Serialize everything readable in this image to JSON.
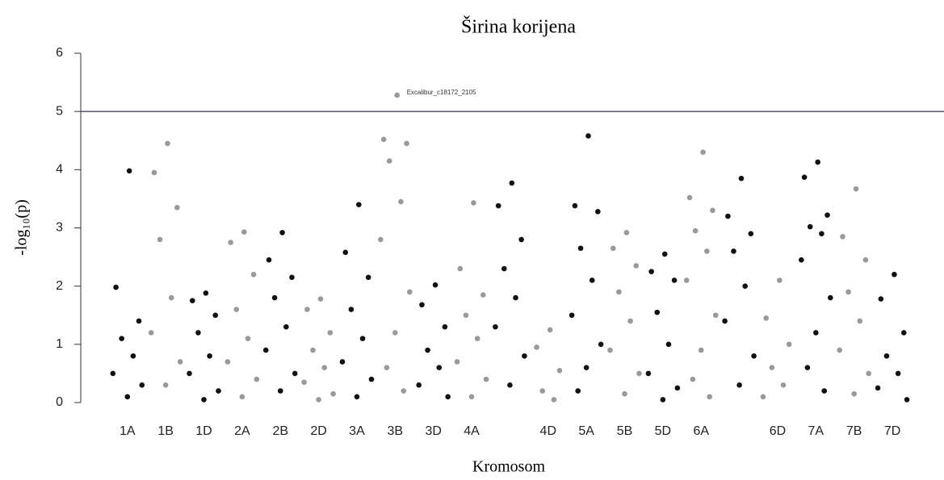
{
  "chart_data": {
    "type": "scatter",
    "title": "Širina korijena",
    "x_label": "Kromosom",
    "y_label": "-log₁₀(p)",
    "categories": [
      "1A",
      "1B",
      "1D",
      "2A",
      "2B",
      "2D",
      "3A",
      "3B",
      "3D",
      "4A",
      null,
      "4D",
      "5A",
      "5B",
      "5D",
      "6A",
      null,
      "6D",
      "7A",
      "7B",
      "7D"
    ],
    "xlim": [
      -1.22,
      21.35
    ],
    "ylim": [
      0,
      6
    ],
    "yticks": [
      0,
      1,
      2,
      3,
      4,
      5,
      6
    ],
    "threshold": 5,
    "threshold_color": "#3f3f8f",
    "annotation": "Excalibur_c18172_2105",
    "series": [
      {
        "color": "#111111",
        "x": [
          0.05,
          -0.3,
          0.3,
          -0.15,
          0.15,
          -0.38,
          0.38,
          0,
          2.05,
          1.7,
          2.3,
          1.85,
          2.15,
          1.62,
          2.38,
          2,
          4.05,
          3.7,
          4.3,
          3.85,
          4.15,
          3.62,
          4.38,
          4,
          6.05,
          5.7,
          6.3,
          5.85,
          6.15,
          5.62,
          6.38,
          6,
          8.05,
          7.7,
          8.3,
          7.85,
          8.15,
          7.62,
          8.38,
          10.05,
          9.7,
          10.3,
          9.85,
          10.15,
          9.62,
          10.38,
          10,
          12.05,
          11.7,
          12.3,
          11.85,
          12.15,
          11.62,
          12.38,
          12,
          11.78,
          14.05,
          13.7,
          14.3,
          13.85,
          14.15,
          13.62,
          14.38,
          14,
          16.05,
          15.7,
          16.3,
          15.85,
          16.15,
          15.62,
          16.38,
          16,
          18.05,
          17.7,
          18.3,
          17.85,
          18.15,
          17.62,
          18.38,
          18,
          17.78,
          18.22,
          20.05,
          19.7,
          20.3,
          19.85,
          20.15,
          19.62,
          20.38
        ],
        "values": [
          3.98,
          1.98,
          1.4,
          1.1,
          0.8,
          0.5,
          0.3,
          0.1,
          1.88,
          1.75,
          1.5,
          1.2,
          0.8,
          0.5,
          0.2,
          0.05,
          2.92,
          2.45,
          2.15,
          1.8,
          1.3,
          0.9,
          0.5,
          0.2,
          3.4,
          2.58,
          2.15,
          1.6,
          1.1,
          0.7,
          0.4,
          0.1,
          2.02,
          1.68,
          1.3,
          0.9,
          0.6,
          0.3,
          0.1,
          3.77,
          3.38,
          2.8,
          2.3,
          1.8,
          1.3,
          0.8,
          0.3,
          4.58,
          3.38,
          3.28,
          2.65,
          2.1,
          1.5,
          1.0,
          0.6,
          0.2,
          2.55,
          2.25,
          2.1,
          1.55,
          1.0,
          0.5,
          0.25,
          0.05,
          3.85,
          3.2,
          2.9,
          2.6,
          2.0,
          1.4,
          0.8,
          0.3,
          4.13,
          3.87,
          3.22,
          3.02,
          2.9,
          2.45,
          1.8,
          1.2,
          0.6,
          0.2,
          2.2,
          1.78,
          1.2,
          0.8,
          0.5,
          0.25,
          0.05
        ]
      },
      {
        "color": "#999999",
        "x": [
          1.05,
          0.7,
          1.3,
          0.85,
          1.15,
          0.62,
          1.38,
          1,
          3.05,
          2.7,
          3.3,
          2.85,
          3.15,
          2.62,
          3.38,
          3,
          5.05,
          4.7,
          5.3,
          4.85,
          5.15,
          4.62,
          5.38,
          5,
          7.05,
          6.7,
          7.3,
          6.85,
          7.15,
          6.62,
          7.38,
          7,
          6.78,
          7.22,
          9.05,
          8.7,
          9.3,
          8.85,
          9.15,
          8.62,
          9.38,
          9,
          11.05,
          10.7,
          11.3,
          10.85,
          11.15,
          13.05,
          12.7,
          13.3,
          12.85,
          13.15,
          12.62,
          13.38,
          13,
          15.05,
          14.7,
          15.3,
          14.85,
          15.15,
          14.62,
          15.38,
          15,
          14.78,
          15.22,
          17.05,
          16.7,
          17.3,
          16.85,
          17.15,
          16.62,
          19.05,
          18.7,
          19.3,
          18.85,
          19.15,
          18.62,
          19.38,
          19
        ],
        "values": [
          4.45,
          3.95,
          3.35,
          2.8,
          1.8,
          1.2,
          0.7,
          0.3,
          2.93,
          2.75,
          2.2,
          1.6,
          1.1,
          0.7,
          0.4,
          0.1,
          1.78,
          1.6,
          1.2,
          0.9,
          0.6,
          0.35,
          0.15,
          0.05,
          5.28,
          4.52,
          4.45,
          4.15,
          3.45,
          2.8,
          1.9,
          1.2,
          0.6,
          0.2,
          3.43,
          2.3,
          1.85,
          1.5,
          1.1,
          0.7,
          0.4,
          0.1,
          1.25,
          0.95,
          0.55,
          0.2,
          0.05,
          2.92,
          2.65,
          2.35,
          1.9,
          1.4,
          0.9,
          0.5,
          0.15,
          4.3,
          3.52,
          3.3,
          2.95,
          2.6,
          2.1,
          1.5,
          0.9,
          0.4,
          0.1,
          2.1,
          1.45,
          1.0,
          0.6,
          0.3,
          0.1,
          3.67,
          2.85,
          2.45,
          1.9,
          1.4,
          0.9,
          0.5,
          0.15
        ]
      }
    ]
  }
}
